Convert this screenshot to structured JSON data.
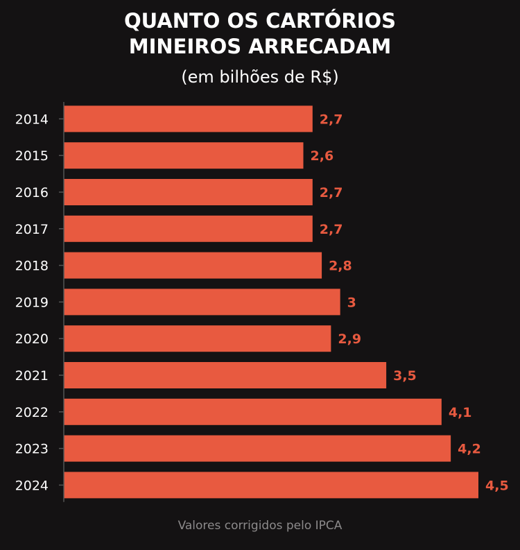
{
  "chart_data": {
    "type": "bar",
    "orientation": "horizontal",
    "title_lines": [
      "QUANTO OS CARTÓRIOS",
      "MINEIROS ARRECADAM"
    ],
    "subtitle": "(em bilhões de R$)",
    "categories": [
      "2014",
      "2015",
      "2016",
      "2017",
      "2018",
      "2019",
      "2020",
      "2021",
      "2022",
      "2023",
      "2024"
    ],
    "values": [
      2.7,
      2.6,
      2.7,
      2.7,
      2.8,
      3,
      2.9,
      3.5,
      4.1,
      4.2,
      4.5
    ],
    "value_labels": [
      "2,7",
      "2,6",
      "2,7",
      "2,7",
      "2,8",
      "3",
      "2,9",
      "3,5",
      "4,1",
      "4,2",
      "4,5"
    ],
    "xlim": [
      0,
      4.5
    ],
    "grid": false,
    "footnote": "Valores corrigidos pelo IPCA",
    "colors": {
      "bar": "#e85a40",
      "label": "#e85a40",
      "background": "#141213",
      "text": "#ffffff",
      "axis": "#555555"
    }
  }
}
